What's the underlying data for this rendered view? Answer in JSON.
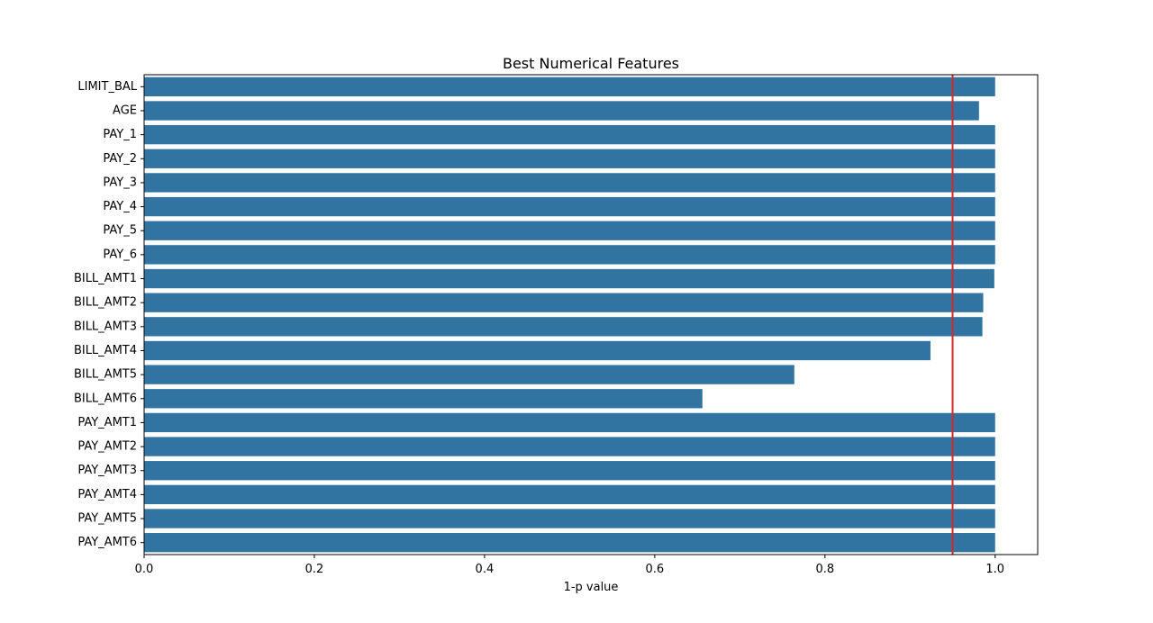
{
  "chart_data": {
    "type": "bar",
    "orientation": "horizontal",
    "title": "Best Numerical Features",
    "xlabel": "1-p value",
    "ylabel": "",
    "xlim": [
      0,
      1.05
    ],
    "xticks": [
      0.0,
      0.2,
      0.4,
      0.6,
      0.8,
      1.0
    ],
    "xtick_labels": [
      "0.0",
      "0.2",
      "0.4",
      "0.6",
      "0.8",
      "1.0"
    ],
    "categories": [
      "LIMIT_BAL",
      "AGE",
      "PAY_1",
      "PAY_2",
      "PAY_3",
      "PAY_4",
      "PAY_5",
      "PAY_6",
      "BILL_AMT1",
      "BILL_AMT2",
      "BILL_AMT3",
      "BILL_AMT4",
      "BILL_AMT5",
      "BILL_AMT6",
      "PAY_AMT1",
      "PAY_AMT2",
      "PAY_AMT3",
      "PAY_AMT4",
      "PAY_AMT5",
      "PAY_AMT6"
    ],
    "values": [
      1.0,
      0.981,
      1.0,
      1.0,
      1.0,
      1.0,
      1.0,
      1.0,
      0.999,
      0.986,
      0.985,
      0.924,
      0.764,
      0.656,
      1.0,
      1.0,
      1.0,
      1.0,
      1.0,
      1.0
    ],
    "reference_line": {
      "x": 0.95,
      "color": "#d62728"
    },
    "bar_color": "#3274a1",
    "grid": false,
    "legend": "none"
  }
}
